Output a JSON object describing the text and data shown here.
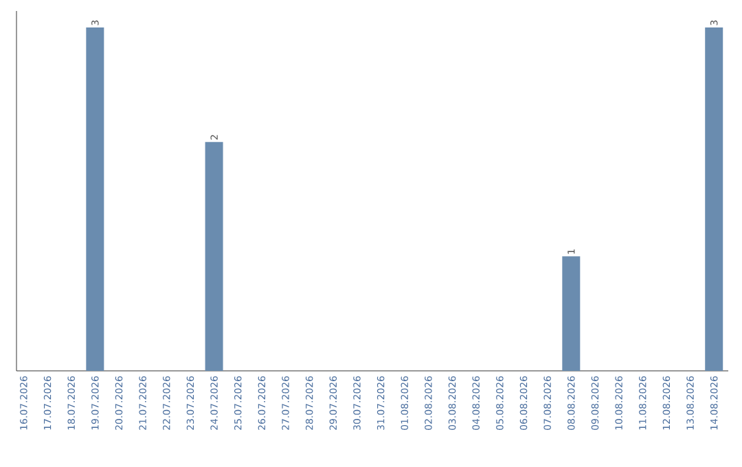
{
  "chart_data": {
    "type": "bar",
    "categories": [
      "16.07.2026",
      "17.07.2026",
      "18.07.2026",
      "19.07.2026",
      "20.07.2026",
      "21.07.2026",
      "22.07.2026",
      "23.07.2026",
      "24.07.2026",
      "25.07.2026",
      "26.07.2026",
      "27.07.2026",
      "28.07.2026",
      "29.07.2026",
      "30.07.2026",
      "31.07.2026",
      "01.08.2026",
      "02.08.2026",
      "03.08.2026",
      "04.08.2026",
      "05.08.2026",
      "06.08.2026",
      "07.08.2026",
      "08.08.2026",
      "09.08.2026",
      "10.08.2026",
      "11.08.2026",
      "12.08.2026",
      "13.08.2026",
      "14.08.2026"
    ],
    "values": [
      0,
      0,
      0,
      3,
      0,
      0,
      0,
      0,
      2,
      0,
      0,
      0,
      0,
      0,
      0,
      0,
      0,
      0,
      0,
      0,
      0,
      0,
      0,
      1,
      0,
      0,
      0,
      0,
      0,
      3
    ],
    "value_labels": [
      null,
      null,
      null,
      "3",
      null,
      null,
      null,
      null,
      "2",
      null,
      null,
      null,
      null,
      null,
      null,
      null,
      null,
      null,
      null,
      null,
      null,
      null,
      null,
      "1",
      null,
      null,
      null,
      null,
      null,
      "3"
    ],
    "color": "#6a8caf",
    "ylim": [
      0,
      3
    ],
    "tick_labels": "x"
  }
}
